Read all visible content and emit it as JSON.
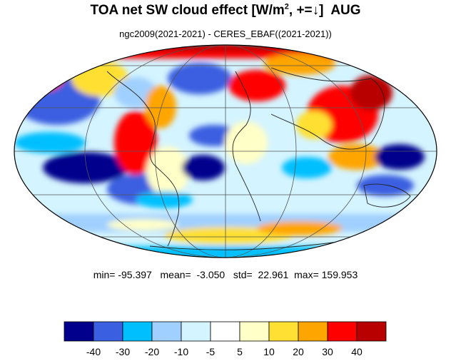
{
  "title": "TOA net SW cloud effect [W/m², +=↓]  AUG",
  "subtitle": "ngc2009(2021-2021) - CERES_EBAF((2021-2021))",
  "stats": {
    "min": "-95.397",
    "mean": "-3.050",
    "std": "22.961",
    "max": "159.953"
  },
  "map": {
    "projection": "mollweide",
    "field": "difference map (model minus observations)",
    "gridlines": true,
    "coastlines": true
  },
  "colorbar": {
    "colors": [
      "#00008c",
      "#3a5fe0",
      "#00bfff",
      "#a0d0ff",
      "#d4f4ff",
      "#ffffff",
      "#ffffc8",
      "#ffe033",
      "#ffa500",
      "#ff0000",
      "#b80000"
    ],
    "tick_labels": [
      "-40",
      "-30",
      "-20",
      "-10",
      "-5",
      "5",
      "10",
      "20",
      "30",
      "40"
    ]
  }
}
